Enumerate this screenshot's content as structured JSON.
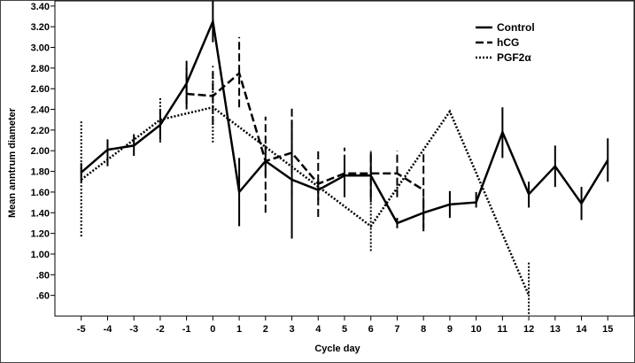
{
  "chart_data": {
    "type": "line",
    "title": "",
    "xlabel": "Cycle day",
    "ylabel": "Mean anntrum diameter",
    "ylim": [
      0.4,
      3.45
    ],
    "yticks": [
      "3.40",
      "3.20",
      "3.00",
      "2.80",
      "2.60",
      "2.40",
      "2.20",
      "2.00",
      "1.80",
      "1.60",
      "1.40",
      "1.20",
      "1.00",
      ".80",
      ".60"
    ],
    "ytick_values": [
      3.4,
      3.2,
      3.0,
      2.8,
      2.6,
      2.4,
      2.2,
      2.0,
      1.8,
      1.6,
      1.4,
      1.2,
      1.0,
      0.8,
      0.6
    ],
    "x": [
      -5,
      -4,
      -3,
      -2,
      -1,
      0,
      1,
      2,
      3,
      4,
      5,
      6,
      7,
      8,
      9,
      10,
      11,
      12,
      13,
      14,
      15
    ],
    "xtick_labels": [
      "-5",
      "-4",
      "-3",
      "-2",
      "-1",
      "0",
      "1",
      "2",
      "3",
      "4",
      "5",
      "6",
      "7",
      "8",
      "9",
      "10",
      "11",
      "12",
      "13",
      "14",
      "15"
    ],
    "legend_position": "top-right",
    "series": [
      {
        "name": "Control",
        "style": "solid",
        "color": "#000000",
        "x": [
          -5,
          -4,
          -3,
          -2,
          -1,
          0,
          1,
          2,
          3,
          4,
          5,
          6,
          7,
          8,
          9,
          10,
          11,
          12,
          13,
          14,
          15
        ],
        "values": [
          1.79,
          2.01,
          2.05,
          2.25,
          2.65,
          3.25,
          1.6,
          1.9,
          1.72,
          1.62,
          1.76,
          1.76,
          1.3,
          1.4,
          1.48,
          1.5,
          2.18,
          1.58,
          1.85,
          1.49,
          1.91
        ],
        "err_low": [
          1.7,
          1.85,
          1.95,
          2.1,
          2.4,
          3.05,
          1.27,
          1.75,
          1.15,
          1.52,
          1.6,
          1.5,
          1.25,
          1.25,
          1.35,
          1.45,
          1.93,
          1.45,
          1.65,
          1.33,
          1.7
        ],
        "err_high": [
          1.88,
          2.11,
          2.16,
          2.4,
          2.87,
          3.45,
          1.93,
          2.05,
          2.3,
          1.72,
          1.92,
          1.99,
          1.35,
          1.55,
          1.61,
          1.6,
          2.42,
          1.7,
          2.05,
          1.65,
          2.12
        ]
      },
      {
        "name": "hCG",
        "style": "dashed",
        "color": "#000000",
        "x": [
          -1,
          0,
          1,
          2,
          3,
          4,
          5,
          6,
          7,
          8
        ],
        "values": [
          2.55,
          2.53,
          2.75,
          1.9,
          1.98,
          1.68,
          1.78,
          1.78,
          1.78,
          1.62
        ],
        "err_low": [
          2.45,
          2.25,
          2.42,
          1.4,
          1.55,
          1.36,
          1.55,
          1.55,
          1.55,
          1.22
        ],
        "err_high": [
          2.8,
          2.82,
          3.1,
          2.33,
          2.43,
          2.0,
          2.03,
          2.0,
          2.0,
          2.0
        ]
      },
      {
        "name": "PGF2α",
        "style": "dotted",
        "color": "#000000",
        "x": [
          -5,
          -2,
          0,
          6,
          9,
          12
        ],
        "values": [
          1.72,
          2.3,
          2.42,
          1.27,
          2.38,
          0.6
        ],
        "err_low": [
          1.17,
          2.08,
          2.08,
          1.03,
          2.38,
          0.42
        ],
        "err_high": [
          2.29,
          2.52,
          2.76,
          1.5,
          2.38,
          0.93
        ]
      }
    ]
  }
}
